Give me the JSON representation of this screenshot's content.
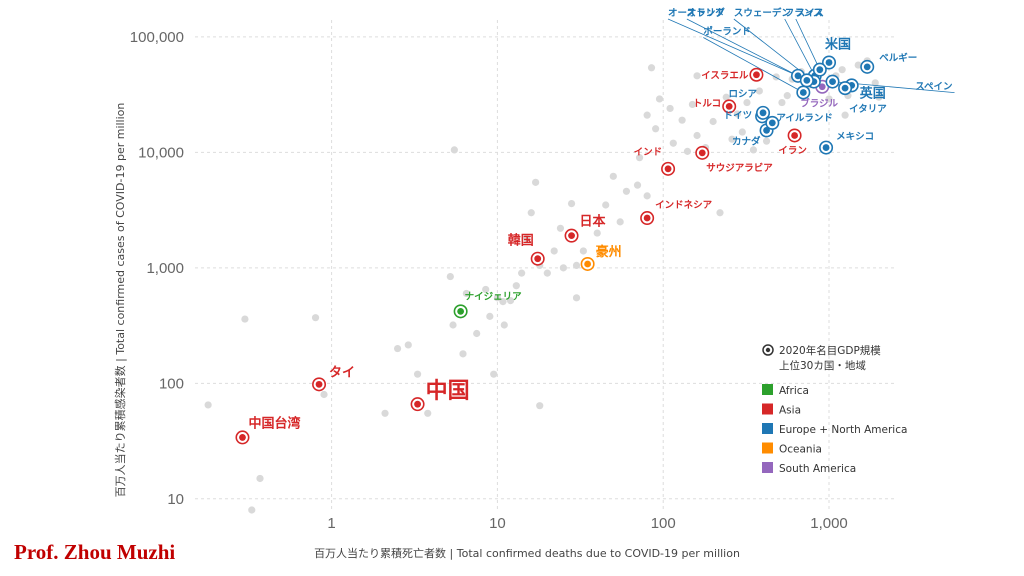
{
  "author": "Prof. Zhou Muzhi",
  "colors": {
    "Africa": "#2ca02c",
    "Asia": "#d62728",
    "Europe + North America": "#1f77b4",
    "Oceania": "#ff8c00",
    "South America": "#9467bd",
    "other": "#d9d9d9",
    "grid": "#dddddd"
  },
  "chart_data": {
    "type": "scatter",
    "xlabel": "百万人当たり累積死亡者数 | Total confirmed deaths due to COVID-19 per million",
    "ylabel": "百万人当たり累積感染者数 | Total confirmed cases of COVID-19 per million",
    "x_scale": "log",
    "y_scale": "log",
    "xlim": [
      0.15,
      2500
    ],
    "ylim": [
      8,
      140000
    ],
    "x_ticks": [
      {
        "value": 1,
        "label": "1"
      },
      {
        "value": 10,
        "label": "10"
      },
      {
        "value": 100,
        "label": "100"
      },
      {
        "value": 1000,
        "label": "1,000"
      }
    ],
    "y_ticks": [
      {
        "value": 10,
        "label": "10"
      },
      {
        "value": 100,
        "label": "100"
      },
      {
        "value": 1000,
        "label": "1,000"
      },
      {
        "value": 10000,
        "label": "10,000"
      },
      {
        "value": 100000,
        "label": "100,000"
      }
    ],
    "grid": true,
    "legend": {
      "position": "right",
      "title_line1": "2020年名目GDP規模",
      "title_line2": "上位30カ国・地域",
      "entries": [
        "Africa",
        "Asia",
        "Europe + North America",
        "Oceania",
        "South America"
      ]
    },
    "highlighted": [
      {
        "label": "中国台湾",
        "region": "Asia",
        "x": 0.29,
        "y": 34
      },
      {
        "label": "タイ",
        "region": "Asia",
        "x": 0.84,
        "y": 98
      },
      {
        "label": "中国",
        "region": "Asia",
        "x": 3.3,
        "y": 66
      },
      {
        "label": "ナイジェリア",
        "region": "Africa",
        "x": 6.0,
        "y": 420
      },
      {
        "label": "韓国",
        "region": "Asia",
        "x": 17.5,
        "y": 1200
      },
      {
        "label": "日本",
        "region": "Asia",
        "x": 28,
        "y": 1900
      },
      {
        "label": "豪州",
        "region": "Oceania",
        "x": 35,
        "y": 1080
      },
      {
        "label": "インドネシア",
        "region": "Asia",
        "x": 80,
        "y": 2700
      },
      {
        "label": "インド",
        "region": "Asia",
        "x": 107,
        "y": 7200
      },
      {
        "label": "サウジアラビア",
        "region": "Asia",
        "x": 172,
        "y": 9900
      },
      {
        "label": "トルコ",
        "region": "Asia",
        "x": 250,
        "y": 25000
      },
      {
        "label": "イスラエル",
        "region": "Asia",
        "x": 365,
        "y": 47000
      },
      {
        "label": "イラン",
        "region": "Asia",
        "x": 620,
        "y": 14000
      },
      {
        "label": "メキシコ",
        "region": "Europe + North America",
        "x": 960,
        "y": 11000
      },
      {
        "label": "カナダ",
        "region": "Europe + North America",
        "x": 420,
        "y": 15500
      },
      {
        "label": "ドイツ",
        "region": "Europe + North America",
        "x": 395,
        "y": 20500
      },
      {
        "label": "ロシア",
        "region": "Europe + North America",
        "x": 400,
        "y": 22000
      },
      {
        "label": "アイルランド",
        "region": "Europe + North America",
        "x": 455,
        "y": 18000
      },
      {
        "label": "ブラジル",
        "region": "South America",
        "x": 910,
        "y": 37000
      },
      {
        "label": "米国",
        "region": "Europe + North America",
        "x": 1000,
        "y": 60000
      },
      {
        "label": "英国",
        "region": "Europe + North America",
        "x": 1370,
        "y": 38000
      },
      {
        "label": "イタリア",
        "region": "Europe + North America",
        "x": 1250,
        "y": 36000
      },
      {
        "label": "スペイン",
        "region": "Europe + North America",
        "x": 1050,
        "y": 41000
      },
      {
        "label": "ベルギー",
        "region": "Europe + North America",
        "x": 1700,
        "y": 55000
      },
      {
        "label": "フランス",
        "region": "Europe + North America",
        "x": 820,
        "y": 46000
      },
      {
        "label": "スイス",
        "region": "Europe + North America",
        "x": 880,
        "y": 52000
      },
      {
        "label": "スウェーデン",
        "region": "Europe + North America",
        "x": 810,
        "y": 41000
      },
      {
        "label": "オーストリア",
        "region": "Europe + North America",
        "x": 650,
        "y": 46000
      },
      {
        "label": "オランダ",
        "region": "Europe + North America",
        "x": 735,
        "y": 42000
      },
      {
        "label": "ポーランド",
        "region": "Europe + North America",
        "x": 700,
        "y": 33000
      }
    ],
    "background_points": [
      [
        0.18,
        65
      ],
      [
        0.3,
        360
      ],
      [
        0.33,
        8
      ],
      [
        0.37,
        15
      ],
      [
        0.8,
        370
      ],
      [
        0.9,
        80
      ],
      [
        2.1,
        55
      ],
      [
        2.9,
        215
      ],
      [
        3.3,
        120
      ],
      [
        3.8,
        55
      ],
      [
        5.2,
        840
      ],
      [
        5.4,
        320
      ],
      [
        6.5,
        600
      ],
      [
        6.2,
        180
      ],
      [
        7.5,
        270
      ],
      [
        5.5,
        10500
      ],
      [
        8.5,
        650
      ],
      [
        9,
        380
      ],
      [
        10,
        550
      ],
      [
        10.8,
        510
      ],
      [
        12,
        520
      ],
      [
        13,
        700
      ],
      [
        14,
        900
      ],
      [
        15,
        1800
      ],
      [
        16,
        3000
      ],
      [
        17,
        5500
      ],
      [
        18,
        1050
      ],
      [
        20,
        900
      ],
      [
        22,
        1400
      ],
      [
        24,
        2200
      ],
      [
        25,
        1000
      ],
      [
        28,
        3600
      ],
      [
        30,
        550
      ],
      [
        33,
        1400
      ],
      [
        40,
        2000
      ],
      [
        45,
        3500
      ],
      [
        50,
        6200
      ],
      [
        55,
        2500
      ],
      [
        60,
        4600
      ],
      [
        70,
        5200
      ],
      [
        72,
        9000
      ],
      [
        80,
        4200
      ],
      [
        80,
        21000
      ],
      [
        90,
        16000
      ],
      [
        95,
        29000
      ],
      [
        110,
        24000
      ],
      [
        115,
        12000
      ],
      [
        130,
        19000
      ],
      [
        140,
        10200
      ],
      [
        150,
        26000
      ],
      [
        160,
        14000
      ],
      [
        180,
        11000
      ],
      [
        200,
        18500
      ],
      [
        220,
        3000
      ],
      [
        240,
        30000
      ],
      [
        260,
        13000
      ],
      [
        280,
        21500
      ],
      [
        300,
        15000
      ],
      [
        320,
        27000
      ],
      [
        350,
        10500
      ],
      [
        380,
        34000
      ],
      [
        420,
        12500
      ],
      [
        480,
        45000
      ],
      [
        520,
        27000
      ],
      [
        560,
        31000
      ],
      [
        600,
        43000
      ],
      [
        680,
        50000
      ],
      [
        750,
        38000
      ],
      [
        850,
        47000
      ],
      [
        1000,
        29000
      ],
      [
        1100,
        46000
      ],
      [
        1200,
        52000
      ],
      [
        1300,
        31000
      ],
      [
        1500,
        57000
      ],
      [
        1700,
        62000
      ],
      [
        1900,
        40000
      ],
      [
        2000,
        30000
      ],
      [
        1250,
        21000
      ],
      [
        160,
        46000
      ],
      [
        85,
        54000
      ],
      [
        18,
        64
      ],
      [
        30,
        1050
      ],
      [
        11,
        320
      ],
      [
        2.5,
        200
      ],
      [
        9.5,
        120
      ]
    ]
  }
}
